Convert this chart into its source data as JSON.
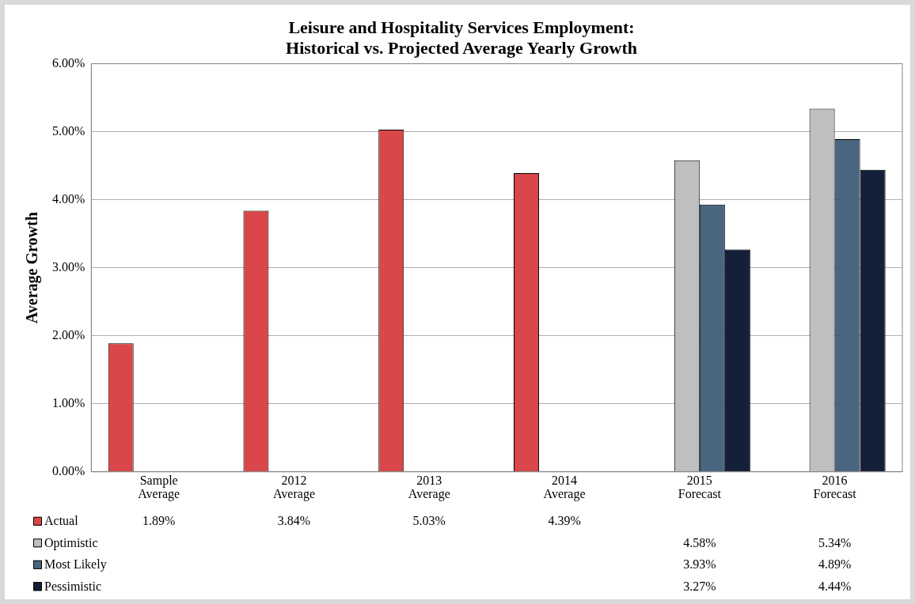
{
  "chart_data": {
    "type": "bar",
    "title": "Leisure and Hospitality Services Employment:\nHistorical vs. Projected Average Yearly Growth",
    "ylabel": "Average Growth",
    "categories": [
      "Sample\nAverage",
      "2012\nAverage",
      "2013\nAverage",
      "2014\nAverage",
      "2015\nForecast",
      "2016\nForecast"
    ],
    "series": [
      {
        "name": "Actual",
        "color": "#d9474a",
        "values": [
          1.89,
          3.84,
          5.03,
          4.39,
          null,
          null
        ],
        "value_labels": [
          "1.89%",
          "3.84%",
          "5.03%",
          "4.39%",
          null,
          null
        ]
      },
      {
        "name": "Optimistic",
        "color": "#bfbfbf",
        "values": [
          null,
          null,
          null,
          null,
          4.58,
          5.34
        ],
        "value_labels": [
          null,
          null,
          null,
          null,
          "4.58%",
          "5.34%"
        ]
      },
      {
        "name": "Most Likely",
        "color": "#4a6580",
        "values": [
          null,
          null,
          null,
          null,
          3.93,
          4.89
        ],
        "value_labels": [
          null,
          null,
          null,
          null,
          "3.93%",
          "4.89%"
        ]
      },
      {
        "name": "Pessimistic",
        "color": "#141f3a",
        "values": [
          null,
          null,
          null,
          null,
          3.27,
          4.44
        ],
        "value_labels": [
          null,
          null,
          null,
          null,
          "3.27%",
          "4.44%"
        ]
      }
    ],
    "ylim": [
      0,
      6
    ],
    "yticks": [
      {
        "value": 0,
        "label": "0.00%"
      },
      {
        "value": 1,
        "label": "1.00%"
      },
      {
        "value": 2,
        "label": "2.00%"
      },
      {
        "value": 3,
        "label": "3.00%"
      },
      {
        "value": 4,
        "label": "4.00%"
      },
      {
        "value": 5,
        "label": "5.00%"
      },
      {
        "value": 6,
        "label": "6.00%"
      }
    ],
    "grid": "y",
    "legend": "bottom"
  }
}
